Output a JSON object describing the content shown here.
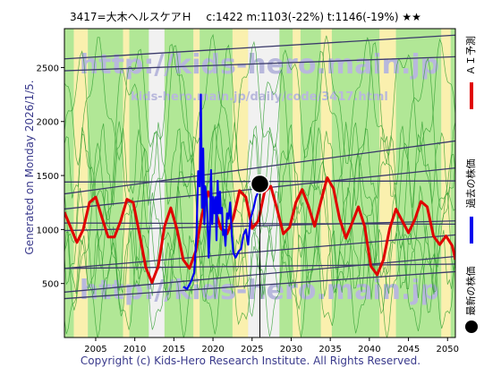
{
  "header": {
    "title": "3417=大木ヘルスケアＨ　 c:1422  m:1103(-22%)  t:1146(-19%)  ★★"
  },
  "side_label": "Generated on Monday 2026/1/5.",
  "footer": {
    "copyright": "Copyright (c) Kids-Hero Research Institute. All Rights Reserved."
  },
  "watermark": {
    "main": "http://kids-hero.main.jp",
    "sub": "kids-hero.main.jp/daily/code/3417.html"
  },
  "legend": {
    "items": [
      {
        "label": "ＡＩ予測",
        "color": "#e00000"
      },
      {
        "label": "過去の株価",
        "color": "#0000ee"
      },
      {
        "label": "最新の株価",
        "color": "#000000"
      }
    ]
  },
  "colors": {
    "prediction": "#e00000",
    "history": "#0000ee",
    "current_marker": "#000000",
    "trend_lines": "#3a3a6a",
    "green_lines": "#2e9e2e",
    "band_green": "#a9e98a",
    "band_yellow": "#fff3a6",
    "band_white": "#f4f4f4",
    "background": "#dedede"
  },
  "chart_data": {
    "type": "line",
    "title": "3417=大木ヘルスケアＨ",
    "stats": {
      "c": 1422,
      "m": 1103,
      "m_pct": -22,
      "t": 1146,
      "t_pct": -19,
      "rating": "★★"
    },
    "xlim": [
      2001,
      2051
    ],
    "ylim": [
      0,
      2860
    ],
    "x_ticks": [
      2005,
      2010,
      2015,
      2020,
      2025,
      2030,
      2035,
      2040,
      2045,
      2050
    ],
    "y_ticks": [
      500,
      1000,
      1500,
      2000,
      2500
    ],
    "grid": false,
    "legend_position": "right",
    "current_point": {
      "x": 2026.0,
      "y": 1422
    },
    "series": [
      {
        "key": "prediction",
        "color": "#e00000",
        "points": [
          [
            2001.0,
            1160
          ],
          [
            2001.8,
            1020
          ],
          [
            2002.6,
            880
          ],
          [
            2003.4,
            1000
          ],
          [
            2004.2,
            1250
          ],
          [
            2005.0,
            1300
          ],
          [
            2005.8,
            1110
          ],
          [
            2006.6,
            930
          ],
          [
            2007.4,
            930
          ],
          [
            2008.2,
            1080
          ],
          [
            2009.0,
            1280
          ],
          [
            2009.8,
            1250
          ],
          [
            2010.6,
            960
          ],
          [
            2011.4,
            650
          ],
          [
            2012.2,
            510
          ],
          [
            2013.0,
            660
          ],
          [
            2013.8,
            1030
          ],
          [
            2014.6,
            1200
          ],
          [
            2015.4,
            1000
          ],
          [
            2016.2,
            720
          ],
          [
            2017.0,
            640
          ],
          [
            2017.8,
            800
          ],
          [
            2018.6,
            1140
          ],
          [
            2019.4,
            1350
          ],
          [
            2020.2,
            1200
          ],
          [
            2021.0,
            1010
          ],
          [
            2021.8,
            960
          ],
          [
            2022.6,
            1110
          ],
          [
            2023.4,
            1360
          ],
          [
            2024.2,
            1300
          ],
          [
            2025.0,
            1010
          ],
          [
            2025.8,
            1080
          ],
          [
            2026.6,
            1350
          ],
          [
            2027.4,
            1400
          ],
          [
            2028.2,
            1190
          ],
          [
            2029.0,
            960
          ],
          [
            2029.8,
            1020
          ],
          [
            2030.6,
            1250
          ],
          [
            2031.4,
            1370
          ],
          [
            2032.2,
            1220
          ],
          [
            2033.0,
            1030
          ],
          [
            2033.8,
            1260
          ],
          [
            2034.6,
            1480
          ],
          [
            2035.4,
            1380
          ],
          [
            2036.2,
            1100
          ],
          [
            2037.0,
            920
          ],
          [
            2037.8,
            1060
          ],
          [
            2038.6,
            1210
          ],
          [
            2039.4,
            1030
          ],
          [
            2040.2,
            660
          ],
          [
            2041.0,
            580
          ],
          [
            2041.8,
            720
          ],
          [
            2042.6,
            1010
          ],
          [
            2043.4,
            1190
          ],
          [
            2044.2,
            1080
          ],
          [
            2045.0,
            970
          ],
          [
            2045.8,
            1090
          ],
          [
            2046.6,
            1260
          ],
          [
            2047.4,
            1210
          ],
          [
            2048.2,
            940
          ],
          [
            2049.0,
            860
          ],
          [
            2049.8,
            940
          ],
          [
            2050.6,
            850
          ],
          [
            2051.0,
            720
          ]
        ]
      },
      {
        "key": "history",
        "color": "#0000ee",
        "points": [
          [
            2016.2,
            470
          ],
          [
            2016.7,
            450
          ],
          [
            2017.2,
            520
          ],
          [
            2017.6,
            600
          ],
          [
            2017.9,
            960
          ],
          [
            2018.1,
            1540
          ],
          [
            2018.3,
            1400
          ],
          [
            2018.45,
            2250
          ],
          [
            2018.6,
            1200
          ],
          [
            2018.75,
            1750
          ],
          [
            2018.9,
            1050
          ],
          [
            2019.0,
            1400
          ],
          [
            2019.2,
            1280
          ],
          [
            2019.45,
            740
          ],
          [
            2019.6,
            1000
          ],
          [
            2019.75,
            1550
          ],
          [
            2019.9,
            1050
          ],
          [
            2020.05,
            1300
          ],
          [
            2020.2,
            1150
          ],
          [
            2020.35,
            1300
          ],
          [
            2020.45,
            900
          ],
          [
            2020.6,
            1450
          ],
          [
            2020.75,
            1150
          ],
          [
            2020.9,
            1350
          ],
          [
            2021.0,
            1150
          ],
          [
            2021.15,
            1200
          ],
          [
            2021.3,
            950
          ],
          [
            2021.45,
            1000
          ],
          [
            2021.6,
            850
          ],
          [
            2021.8,
            1150
          ],
          [
            2022.0,
            1100
          ],
          [
            2022.2,
            1250
          ],
          [
            2022.4,
            960
          ],
          [
            2022.6,
            780
          ],
          [
            2022.9,
            740
          ],
          [
            2023.3,
            800
          ],
          [
            2023.6,
            820
          ],
          [
            2023.9,
            950
          ],
          [
            2024.2,
            1000
          ],
          [
            2024.5,
            860
          ],
          [
            2024.8,
            1100
          ],
          [
            2025.2,
            1200
          ],
          [
            2025.5,
            1300
          ],
          [
            2025.8,
            1350
          ],
          [
            2026.0,
            1422
          ]
        ]
      }
    ]
  }
}
